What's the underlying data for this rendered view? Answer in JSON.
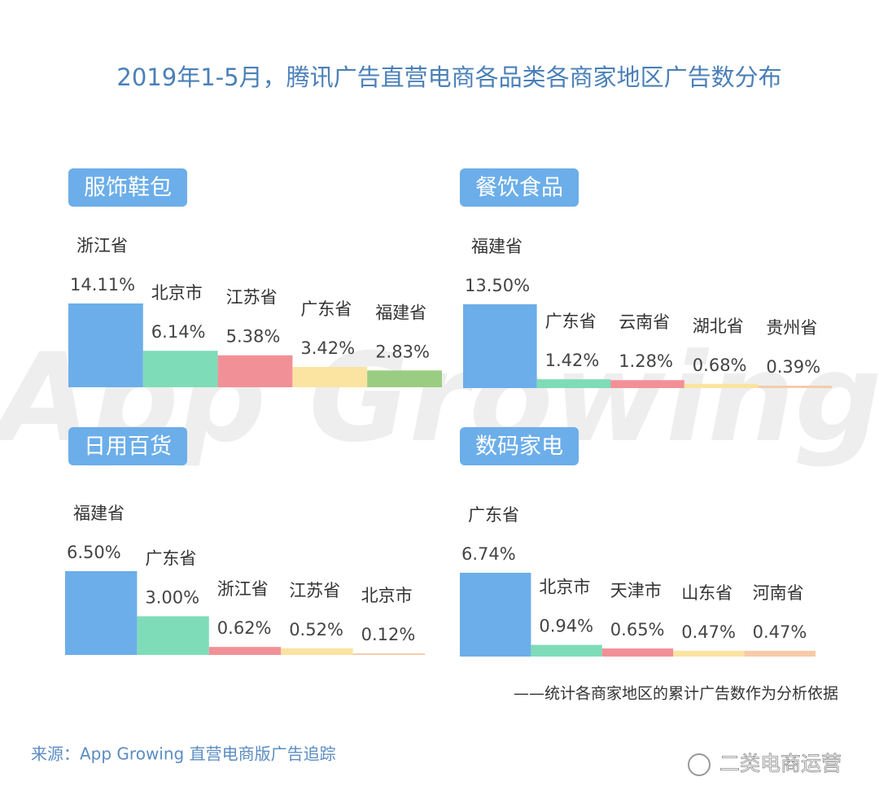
{
  "title": "2019年1-5月，腾讯广告直营电商各品类各商家地区广告数分布",
  "footnote": "——统计各商家地区的累计广告数作为分析依据",
  "source": "来源：App Growing 直营电商版广告追踪",
  "watermark": "App Growing",
  "account_watermark": "二类电商运营",
  "chart_data": [
    {
      "type": "bar",
      "title": "服饰鞋包",
      "categories": [
        "浙江省",
        "北京市",
        "江苏省",
        "广东省",
        "福建省"
      ],
      "values": [
        14.11,
        6.14,
        5.38,
        3.42,
        2.83
      ],
      "value_labels": [
        "14.11%",
        "6.14%",
        "5.38%",
        "3.42%",
        "2.83%"
      ],
      "colors": [
        "#6caee9",
        "#7fdcb9",
        "#f29097",
        "#fbe3a1",
        "#9acd81"
      ]
    },
    {
      "type": "bar",
      "title": "餐饮食品",
      "categories": [
        "福建省",
        "广东省",
        "云南省",
        "湖北省",
        "贵州省"
      ],
      "values": [
        13.5,
        1.42,
        1.28,
        0.68,
        0.39
      ],
      "value_labels": [
        "13.50%",
        "1.42%",
        "1.28%",
        "0.68%",
        "0.39%"
      ],
      "colors": [
        "#6caee9",
        "#7fdcb9",
        "#f29097",
        "#fbe3a1",
        "#f7caa9"
      ]
    },
    {
      "type": "bar",
      "title": "日用百货",
      "categories": [
        "福建省",
        "广东省",
        "浙江省",
        "江苏省",
        "北京市"
      ],
      "values": [
        6.5,
        3.0,
        0.62,
        0.52,
        0.12
      ],
      "value_labels": [
        "6.50%",
        "3.00%",
        "0.62%",
        "0.52%",
        "0.12%"
      ],
      "colors": [
        "#6caee9",
        "#7fdcb9",
        "#f29097",
        "#fbe3a1",
        "#f7caa9"
      ]
    },
    {
      "type": "bar",
      "title": "数码家电",
      "categories": [
        "广东省",
        "北京市",
        "天津市",
        "山东省",
        "河南省"
      ],
      "values": [
        6.74,
        0.94,
        0.65,
        0.47,
        0.47
      ],
      "value_labels": [
        "6.74%",
        "0.94%",
        "0.65%",
        "0.47%",
        "0.47%"
      ],
      "colors": [
        "#6caee9",
        "#7fdcb9",
        "#f29097",
        "#fbe3a1",
        "#f7caa9"
      ]
    }
  ]
}
